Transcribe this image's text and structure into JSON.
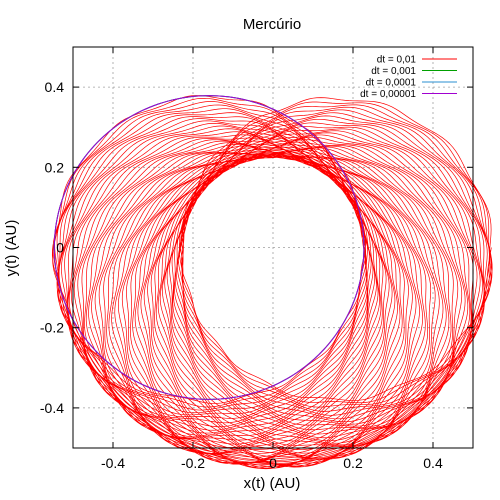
{
  "chart_data": {
    "type": "line",
    "title": "Mercúrio",
    "xlabel": "x(t) (AU)",
    "ylabel": "y(t) (AU)",
    "xlim": [
      -0.5,
      0.5
    ],
    "ylim": [
      -0.5,
      0.5
    ],
    "xticks": [
      "-0.4",
      "-0.2",
      "0",
      "0.2",
      "0.4"
    ],
    "yticks": [
      "-0.4",
      "-0.2",
      "0",
      "0.2",
      "0.4"
    ],
    "grid": true,
    "legend_position": "top-right",
    "series": [
      {
        "name": "dt = 0,01",
        "color": "#ff0000",
        "orbit": {
          "semi_major_axis": 0.387,
          "eccentricity": 0.206,
          "perihelion_x": 0.307,
          "precession_turns": 0.5,
          "revolutions": 60
        }
      },
      {
        "name": "dt = 0,001",
        "color": "#00a000",
        "orbit": {
          "semi_major_axis": 0.387,
          "eccentricity": 0.206,
          "perihelion_x": 0.307,
          "precession_turns": 0,
          "revolutions": 1
        }
      },
      {
        "name": "dt = 0,0001",
        "color": "#2a8fd0",
        "orbit": {
          "semi_major_axis": 0.387,
          "eccentricity": 0.206,
          "perihelion_x": 0.307,
          "precession_turns": 0,
          "revolutions": 1
        }
      },
      {
        "name": "dt = 0,00001",
        "color": "#a000d0",
        "orbit": {
          "semi_major_axis": 0.387,
          "eccentricity": 0.206,
          "perihelion_x": 0.307,
          "precession_turns": 0,
          "revolutions": 1
        }
      }
    ]
  }
}
